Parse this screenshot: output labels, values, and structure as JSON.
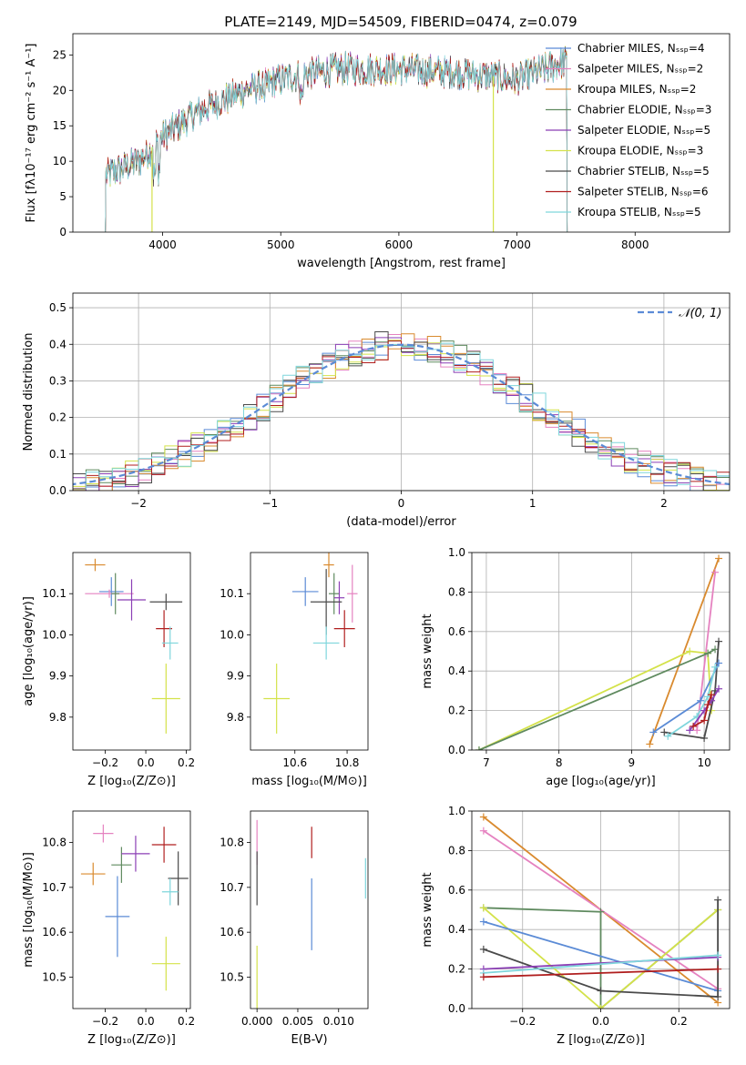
{
  "title": "PLATE=2149, MJD=54509, FIBERID=0474, z=0.079",
  "colors": {
    "c1": "#5b8bd6",
    "c2": "#e0762a",
    "c3": "#d98a2e",
    "c4": "#5f8a5f",
    "c5": "#8b3fb5",
    "c6": "#d4e24a",
    "c7": "#4a4a4a",
    "c8": "#b01e1e",
    "c9": "#7fd6dc",
    "pink": "#e582c0"
  },
  "chart_data": [
    {
      "id": "spectrum",
      "type": "line",
      "xlabel": "wavelength [Angstrom, rest frame]",
      "ylabel": "Flux [fλ10⁻¹⁷ erg cm⁻² s⁻¹ A⁻¹]",
      "xlim": [
        3240,
        8800
      ],
      "ylim": [
        0,
        28
      ],
      "xticks": [
        4000,
        5000,
        6000,
        7000,
        8000
      ],
      "yticks": [
        0,
        5,
        10,
        15,
        20,
        25
      ],
      "legend_position": "top-right",
      "continuum": {
        "x": [
          3520,
          3800,
          4000,
          4300,
          4700,
          5100,
          5500,
          6000,
          6500,
          7000,
          7400
        ],
        "y": [
          8,
          10,
          13.5,
          17,
          20,
          22,
          23,
          23,
          22.5,
          21.5,
          24
        ]
      },
      "series": [
        {
          "name": "Chabrier MILES, Nₛₛₚ=4",
          "color": "#5b8bd6"
        },
        {
          "name": "Salpeter MILES, Nₛₛₚ=2",
          "color": "#e582c0"
        },
        {
          "name": "Kroupa MILES, Nₛₛₚ=2",
          "color": "#d98a2e"
        },
        {
          "name": "Chabrier ELODIE, Nₛₛₚ=3",
          "color": "#5f8a5f"
        },
        {
          "name": "Salpeter ELODIE, Nₛₛₚ=5",
          "color": "#8b3fb5"
        },
        {
          "name": "Kroupa ELODIE, Nₛₛₚ=3",
          "color": "#d4e24a"
        },
        {
          "name": "Chabrier STELIB, Nₛₛₚ=5",
          "color": "#4a4a4a"
        },
        {
          "name": "Salpeter STELIB, Nₛₛₚ=6",
          "color": "#b01e1e"
        },
        {
          "name": "Kroupa STELIB, Nₛₛₚ=5",
          "color": "#7fd6dc"
        }
      ]
    },
    {
      "id": "hist",
      "type": "bar",
      "xlabel": "(data-model)/error",
      "ylabel": "Normed distribution",
      "xlim": [
        -2.5,
        2.5
      ],
      "ylim": [
        0,
        0.54
      ],
      "xticks": [
        -2,
        -1,
        0,
        1,
        2
      ],
      "yticks": [
        0.0,
        0.1,
        0.2,
        0.3,
        0.4,
        0.5
      ],
      "grid": true,
      "legend_position": "top-right",
      "legend": "𝒩(0, 1)",
      "bin_width": 0.1,
      "colors": [
        "#5b8bd6",
        "#e582c0",
        "#d98a2e",
        "#5f8a5f",
        "#8b3fb5",
        "#d4e24a",
        "#4a4a4a",
        "#b01e1e",
        "#7fd6dc"
      ]
    },
    {
      "id": "age_Z",
      "type": "scatter",
      "xlabel": "Z [log₁₀(Z/Z⊙)]",
      "ylabel": "age  [log₁₀(age/yr)]",
      "xlim": [
        -0.36,
        0.22
      ],
      "ylim": [
        9.72,
        10.2
      ],
      "xticks": [
        -0.2,
        0.0,
        0.2
      ],
      "xticklabels": [
        "−0.2",
        "0.0",
        "0.2"
      ],
      "yticks": [
        9.8,
        9.9,
        10.0,
        10.1
      ],
      "points": [
        {
          "x": -0.17,
          "y": 10.105,
          "xerr": 0.06,
          "yerr": 0.035,
          "color": "#5b8bd6"
        },
        {
          "x": -0.18,
          "y": 10.1,
          "xerr": 0.12,
          "yerr": 0.01,
          "color": "#e582c0"
        },
        {
          "x": -0.25,
          "y": 10.17,
          "xerr": 0.05,
          "yerr": 0.015,
          "color": "#d98a2e"
        },
        {
          "x": -0.15,
          "y": 10.1,
          "xerr": 0.02,
          "yerr": 0.05,
          "color": "#5f8a5f"
        },
        {
          "x": -0.07,
          "y": 10.085,
          "xerr": 0.07,
          "yerr": 0.05,
          "color": "#8b3fb5"
        },
        {
          "x": 0.1,
          "y": 9.845,
          "xerr": 0.07,
          "yerr": 0.085,
          "color": "#d4e24a"
        },
        {
          "x": 0.1,
          "y": 10.08,
          "xerr": 0.08,
          "yerr": 0.02,
          "color": "#4a4a4a"
        },
        {
          "x": 0.09,
          "y": 10.015,
          "xerr": 0.04,
          "yerr": 0.045,
          "color": "#b01e1e"
        },
        {
          "x": 0.12,
          "y": 9.98,
          "xerr": 0.04,
          "yerr": 0.04,
          "color": "#7fd6dc"
        }
      ]
    },
    {
      "id": "age_mass",
      "type": "scatter",
      "xlabel": "mass [log₁₀(M/M⊙)]",
      "ylabel": "",
      "xlim": [
        10.43,
        10.88
      ],
      "ylim": [
        9.72,
        10.2
      ],
      "xticks": [
        10.6,
        10.8
      ],
      "yticks": [
        9.8,
        9.9,
        10.0,
        10.1
      ],
      "points": [
        {
          "x": 10.64,
          "y": 10.105,
          "xerr": 0.05,
          "yerr": 0.035,
          "color": "#5b8bd6"
        },
        {
          "x": 10.82,
          "y": 10.1,
          "xerr": 0.02,
          "yerr": 0.07,
          "color": "#e582c0"
        },
        {
          "x": 10.73,
          "y": 10.17,
          "xerr": 0.02,
          "yerr": 0.03,
          "color": "#d98a2e"
        },
        {
          "x": 10.75,
          "y": 10.1,
          "xerr": 0.02,
          "yerr": 0.05,
          "color": "#5f8a5f"
        },
        {
          "x": 10.77,
          "y": 10.09,
          "xerr": 0.02,
          "yerr": 0.04,
          "color": "#8b3fb5"
        },
        {
          "x": 10.53,
          "y": 9.845,
          "xerr": 0.05,
          "yerr": 0.085,
          "color": "#d4e24a"
        },
        {
          "x": 10.72,
          "y": 10.08,
          "xerr": 0.06,
          "yerr": 0.08,
          "color": "#4a4a4a"
        },
        {
          "x": 10.79,
          "y": 10.015,
          "xerr": 0.04,
          "yerr": 0.045,
          "color": "#b01e1e"
        },
        {
          "x": 10.72,
          "y": 9.98,
          "xerr": 0.05,
          "yerr": 0.04,
          "color": "#7fd6dc"
        }
      ]
    },
    {
      "id": "weight_age",
      "type": "line",
      "xlabel": "age  [log₁₀(age/yr)]",
      "ylabel": "mass weight",
      "xlim": [
        6.8,
        10.35
      ],
      "ylim": [
        0,
        1
      ],
      "xticks": [
        7,
        8,
        9,
        10
      ],
      "yticks": [
        0.0,
        0.2,
        0.4,
        0.6,
        0.8,
        1.0
      ],
      "grid": true,
      "series": [
        {
          "color": "#d98a2e",
          "x": [
            9.25,
            10.2
          ],
          "y": [
            0.03,
            0.97
          ]
        },
        {
          "color": "#e582c0",
          "x": [
            9.9,
            10.15
          ],
          "y": [
            0.1,
            0.9
          ]
        },
        {
          "color": "#d4e24a",
          "x": [
            6.9,
            9.8,
            10.05,
            10.1
          ],
          "y": [
            0.0,
            0.5,
            0.49,
            0.2
          ]
        },
        {
          "color": "#5f8a5f",
          "x": [
            6.9,
            10.05,
            10.15
          ],
          "y": [
            0.0,
            0.49,
            0.51
          ]
        },
        {
          "color": "#4a4a4a",
          "x": [
            9.45,
            10.0,
            10.15,
            10.2
          ],
          "y": [
            0.09,
            0.06,
            0.3,
            0.55
          ]
        },
        {
          "color": "#5b8bd6",
          "x": [
            9.3,
            9.95,
            10.2
          ],
          "y": [
            0.09,
            0.25,
            0.44
          ]
        },
        {
          "color": "#7fd6dc",
          "x": [
            9.5,
            9.9,
            10.05,
            10.15
          ],
          "y": [
            0.07,
            0.17,
            0.27,
            0.42
          ]
        },
        {
          "color": "#8b3fb5",
          "x": [
            9.8,
            10.0,
            10.1,
            10.2
          ],
          "y": [
            0.1,
            0.2,
            0.25,
            0.31
          ]
        },
        {
          "color": "#b01e1e",
          "x": [
            9.85,
            10.0,
            10.05,
            10.1
          ],
          "y": [
            0.12,
            0.15,
            0.23,
            0.28
          ]
        }
      ]
    },
    {
      "id": "mass_Z",
      "type": "scatter",
      "xlabel": "Z [log₁₀(Z/Z⊙)]",
      "ylabel": "mass [log₁₀(M/M⊙)]",
      "xlim": [
        -0.36,
        0.22
      ],
      "ylim": [
        10.43,
        10.87
      ],
      "xticks": [
        -0.2,
        0.0,
        0.2
      ],
      "xticklabels": [
        "−0.2",
        "0.0",
        "0.2"
      ],
      "yticks": [
        10.5,
        10.6,
        10.7,
        10.8
      ],
      "points": [
        {
          "x": -0.14,
          "y": 10.635,
          "xerr": 0.06,
          "yerr": 0.09,
          "color": "#5b8bd6"
        },
        {
          "x": -0.21,
          "y": 10.82,
          "xerr": 0.05,
          "yerr": 0.02,
          "color": "#e582c0"
        },
        {
          "x": -0.26,
          "y": 10.73,
          "xerr": 0.06,
          "yerr": 0.025,
          "color": "#d98a2e"
        },
        {
          "x": -0.12,
          "y": 10.75,
          "xerr": 0.05,
          "yerr": 0.04,
          "color": "#5f8a5f"
        },
        {
          "x": -0.05,
          "y": 10.775,
          "xerr": 0.07,
          "yerr": 0.04,
          "color": "#8b3fb5"
        },
        {
          "x": 0.1,
          "y": 10.53,
          "xerr": 0.07,
          "yerr": 0.06,
          "color": "#d4e24a"
        },
        {
          "x": 0.16,
          "y": 10.72,
          "xerr": 0.05,
          "yerr": 0.06,
          "color": "#4a4a4a"
        },
        {
          "x": 0.09,
          "y": 10.795,
          "xerr": 0.06,
          "yerr": 0.04,
          "color": "#b01e1e"
        },
        {
          "x": 0.12,
          "y": 10.69,
          "xerr": 0.04,
          "yerr": 0.03,
          "color": "#7fd6dc"
        }
      ]
    },
    {
      "id": "mass_ebv",
      "type": "scatter",
      "xlabel": "E(B-V)",
      "ylabel": "",
      "xlim": [
        -0.0008,
        0.0136
      ],
      "ylim": [
        10.43,
        10.87
      ],
      "xticks": [
        0.0,
        0.005,
        0.01
      ],
      "xticklabels": [
        "0.000",
        "0.005",
        "0.010"
      ],
      "yticks": [
        10.5,
        10.6,
        10.7,
        10.8
      ],
      "points": [
        {
          "x": 0.0067,
          "y": 10.64,
          "xerr": 0,
          "yerr": 0.08,
          "color": "#5b8bd6"
        },
        {
          "x": 0.0,
          "y": 10.8,
          "xerr": 0,
          "yerr": 0.05,
          "color": "#e582c0"
        },
        {
          "x": 0.0,
          "y": 10.5,
          "xerr": 0,
          "yerr": 0.07,
          "color": "#d4e24a"
        },
        {
          "x": 0.0,
          "y": 10.72,
          "xerr": 0,
          "yerr": 0.06,
          "color": "#4a4a4a"
        },
        {
          "x": 0.0067,
          "y": 10.8,
          "xerr": 0,
          "yerr": 0.035,
          "color": "#b01e1e"
        },
        {
          "x": 0.0133,
          "y": 10.72,
          "xerr": 0,
          "yerr": 0.045,
          "color": "#7fd6dc"
        }
      ]
    },
    {
      "id": "weight_Z",
      "type": "line",
      "xlabel": "Z [log₁₀(Z/Z⊙)]",
      "ylabel": "mass weight",
      "xlim": [
        -0.33,
        0.33
      ],
      "ylim": [
        0,
        1
      ],
      "xticks": [
        -0.2,
        0.0,
        0.2
      ],
      "xticklabels": [
        "−0.2",
        "0.0",
        "0.2"
      ],
      "yticks": [
        0.0,
        0.2,
        0.4,
        0.6,
        0.8,
        1.0
      ],
      "grid": true,
      "series": [
        {
          "color": "#d98a2e",
          "x": [
            -0.3,
            0.3
          ],
          "y": [
            0.97,
            0.03
          ]
        },
        {
          "color": "#e582c0",
          "x": [
            -0.3,
            0.3
          ],
          "y": [
            0.9,
            0.1
          ]
        },
        {
          "color": "#5f8a5f",
          "x": [
            -0.3,
            0.0,
            0.0,
            0.3
          ],
          "y": [
            0.51,
            0.49,
            0.0,
            0.5
          ]
        },
        {
          "color": "#d4e24a",
          "x": [
            -0.3,
            0.0,
            0.3
          ],
          "y": [
            0.51,
            0.0,
            0.5
          ]
        },
        {
          "color": "#5b8bd6",
          "x": [
            -0.3,
            0.3
          ],
          "y": [
            0.44,
            0.09
          ]
        },
        {
          "color": "#4a4a4a",
          "x": [
            -0.3,
            0.0,
            0.3,
            0.3
          ],
          "y": [
            0.3,
            0.09,
            0.06,
            0.55
          ]
        },
        {
          "color": "#8b3fb5",
          "x": [
            -0.3,
            0.3
          ],
          "y": [
            0.2,
            0.26
          ]
        },
        {
          "color": "#7fd6dc",
          "x": [
            -0.3,
            0.3
          ],
          "y": [
            0.18,
            0.27
          ]
        },
        {
          "color": "#b01e1e",
          "x": [
            -0.3,
            0.3
          ],
          "y": [
            0.16,
            0.2
          ]
        }
      ]
    }
  ]
}
